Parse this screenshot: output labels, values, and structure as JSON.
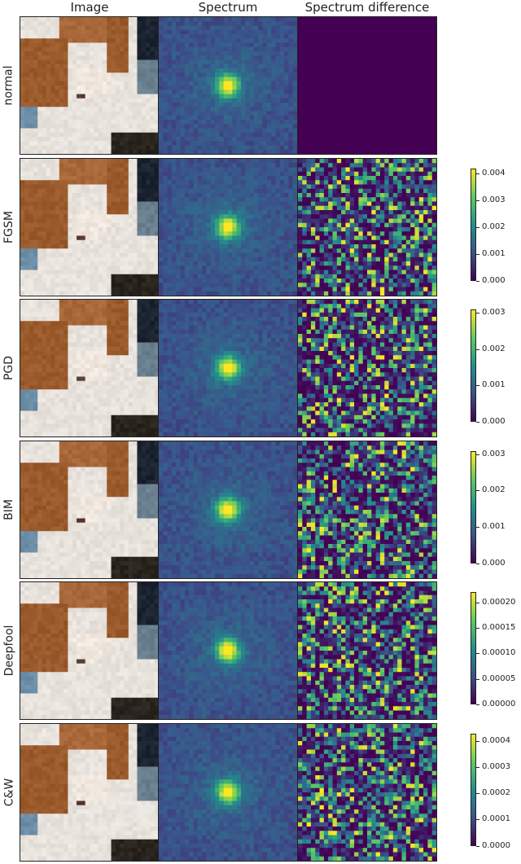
{
  "columns": [
    "Image",
    "Spectrum",
    "Spectrum difference"
  ],
  "rows": [
    {
      "label": "normal",
      "colorbar": null
    },
    {
      "label": "FGSM",
      "colorbar": {
        "max": 0.0042,
        "ticks": [
          "0.000",
          "0.001",
          "0.002",
          "0.003",
          "0.004"
        ]
      }
    },
    {
      "label": "PGD",
      "colorbar": {
        "max": 0.0031,
        "ticks": [
          "0.000",
          "0.001",
          "0.002",
          "0.003"
        ]
      }
    },
    {
      "label": "BIM",
      "colorbar": {
        "max": 0.0031,
        "ticks": [
          "0.000",
          "0.001",
          "0.002",
          "0.003"
        ]
      }
    },
    {
      "label": "Deepfool",
      "colorbar": {
        "max": 0.00022,
        "ticks": [
          "0.00000",
          "0.00005",
          "0.00010",
          "0.00015",
          "0.00020"
        ]
      }
    },
    {
      "label": "C&W",
      "colorbar": {
        "max": 0.00043,
        "ticks": [
          "0.0000",
          "0.0001",
          "0.0002",
          "0.0003",
          "0.0004"
        ]
      }
    }
  ],
  "colormap": [
    "#440154",
    "#3b528b",
    "#21918c",
    "#5ec962",
    "#fde725"
  ]
}
